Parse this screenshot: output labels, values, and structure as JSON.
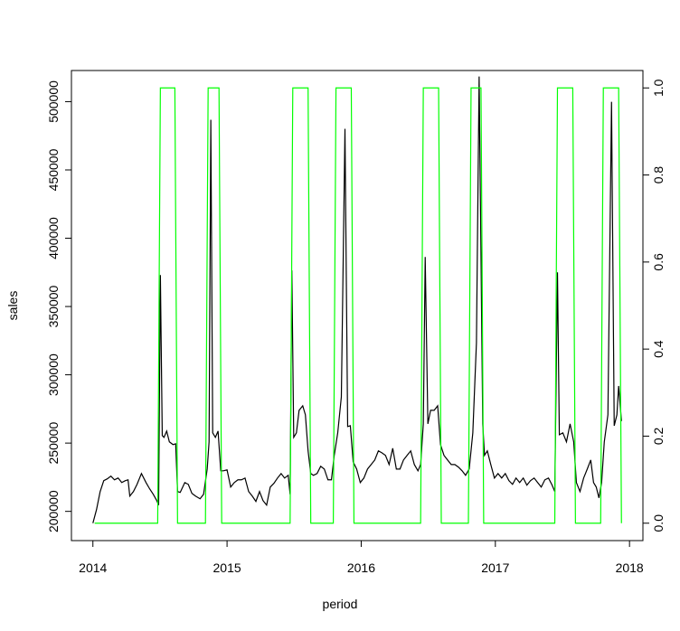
{
  "chart_data": {
    "type": "line",
    "xlabel": "period",
    "ylabel": "sales",
    "xlim": [
      2013.84,
      2018.1
    ],
    "xticks": [
      2014,
      2015,
      2016,
      2017,
      2018
    ],
    "ylim": [
      178600,
      522800
    ],
    "yticks": [
      200000,
      250000,
      300000,
      350000,
      400000,
      450000,
      500000
    ],
    "y2lim": [
      -0.04,
      1.04
    ],
    "y2ticks": [
      {
        "value": 0,
        "label": "0.0"
      },
      0.2,
      0.4,
      0.6,
      0.8,
      {
        "value": 1,
        "label": "1.0"
      }
    ],
    "series": [
      {
        "color": "#000000",
        "axis": "y",
        "x": [
          2014.0,
          2014.027,
          2014.054,
          2014.081,
          2014.107,
          2014.134,
          2014.161,
          2014.188,
          2014.215,
          2014.242,
          2014.262,
          2014.275,
          2014.302,
          2014.329,
          2014.362,
          2014.396,
          2014.423,
          2014.45,
          2014.476,
          2014.49,
          2014.503,
          2014.517,
          2014.53,
          2014.55,
          2014.57,
          2014.597,
          2014.617,
          2014.631,
          2014.651,
          2014.685,
          2014.711,
          2014.738,
          2014.765,
          2014.799,
          2014.825,
          2014.852,
          2014.866,
          2014.879,
          2014.893,
          2014.913,
          2014.933,
          2014.953,
          2014.973,
          2015.0,
          2015.027,
          2015.054,
          2015.081,
          2015.107,
          2015.134,
          2015.161,
          2015.188,
          2015.215,
          2015.242,
          2015.268,
          2015.295,
          2015.322,
          2015.349,
          2015.376,
          2015.403,
          2015.429,
          2015.456,
          2015.47,
          2015.483,
          2015.497,
          2015.517,
          2015.537,
          2015.564,
          2015.584,
          2015.604,
          2015.624,
          2015.644,
          2015.671,
          2015.698,
          2015.725,
          2015.752,
          2015.778,
          2015.799,
          2015.825,
          2015.852,
          2015.879,
          2015.899,
          2015.919,
          2015.94,
          2015.966,
          2015.993,
          2016.02,
          2016.047,
          2016.074,
          2016.101,
          2016.128,
          2016.154,
          2016.181,
          2016.208,
          2016.235,
          2016.262,
          2016.289,
          2016.315,
          2016.342,
          2016.369,
          2016.396,
          2016.423,
          2016.443,
          2016.463,
          2016.477,
          2016.497,
          2016.517,
          2016.544,
          2016.57,
          2016.591,
          2016.617,
          2016.644,
          2016.671,
          2016.698,
          2016.725,
          2016.752,
          2016.778,
          2016.805,
          2016.832,
          2016.859,
          2016.879,
          2016.906,
          2016.919,
          2016.94,
          2016.966,
          2016.993,
          2017.02,
          2017.047,
          2017.074,
          2017.101,
          2017.128,
          2017.154,
          2017.181,
          2017.208,
          2017.235,
          2017.262,
          2017.289,
          2017.315,
          2017.342,
          2017.369,
          2017.396,
          2017.423,
          2017.443,
          2017.463,
          2017.477,
          2017.503,
          2017.53,
          2017.557,
          2017.584,
          2017.604,
          2017.631,
          2017.658,
          2017.685,
          2017.711,
          2017.732,
          2017.752,
          2017.772,
          2017.792,
          2017.812,
          2017.839,
          2017.866,
          2017.886,
          2017.906,
          2017.919,
          2017.94
        ],
        "values": [
          191400,
          201300,
          214500,
          222500,
          223800,
          225800,
          223100,
          224400,
          221100,
          222500,
          223100,
          211200,
          214500,
          219800,
          227700,
          221100,
          216500,
          212500,
          207900,
          204600,
          373000,
          255500,
          254200,
          258800,
          250900,
          248900,
          249500,
          214500,
          213900,
          221100,
          219800,
          213200,
          211200,
          209200,
          212500,
          231000,
          250900,
          486700,
          257500,
          254200,
          258800,
          229700,
          229700,
          230400,
          217800,
          221100,
          223100,
          223100,
          224400,
          214500,
          211200,
          207300,
          214500,
          207900,
          204600,
          217800,
          220500,
          224400,
          227700,
          224400,
          226400,
          212500,
          376400,
          254200,
          257500,
          274000,
          277300,
          270700,
          244300,
          227700,
          226400,
          227700,
          233000,
          231000,
          223100,
          223100,
          241000,
          257500,
          283900,
          480100,
          262100,
          262700,
          236300,
          231000,
          221100,
          224400,
          231000,
          234300,
          237600,
          244300,
          242900,
          241000,
          234300,
          246200,
          231000,
          231000,
          237600,
          241000,
          244300,
          234300,
          229700,
          234300,
          264100,
          386300,
          264100,
          274000,
          274000,
          277300,
          248900,
          241000,
          237600,
          234300,
          234300,
          232400,
          229700,
          226400,
          231000,
          257500,
          323500,
          518400,
          264100,
          241000,
          244300,
          234300,
          224400,
          227700,
          224400,
          227700,
          222500,
          219800,
          224400,
          221100,
          224400,
          219200,
          222500,
          224400,
          221100,
          217800,
          223100,
          224400,
          219200,
          214500,
          375000,
          256100,
          257500,
          250900,
          264100,
          250900,
          221100,
          214500,
          224400,
          231000,
          237600,
          221100,
          217800,
          209900,
          221100,
          250900,
          270700,
          499900,
          262700,
          270700,
          291800,
          266100
        ]
      },
      {
        "color": "#00ff00",
        "axis": "y2",
        "x": [
          2014.013,
          2014.483,
          2014.503,
          2014.611,
          2014.631,
          2014.839,
          2014.859,
          2014.94,
          2014.96,
          2015.47,
          2015.49,
          2015.604,
          2015.624,
          2015.792,
          2015.812,
          2015.926,
          2015.946,
          2016.443,
          2016.463,
          2016.577,
          2016.597,
          2016.799,
          2016.819,
          2016.893,
          2016.913,
          2017.443,
          2017.463,
          2017.577,
          2017.597,
          2017.785,
          2017.805,
          2017.919,
          2017.94
        ],
        "values": [
          0,
          0,
          1,
          1,
          0,
          0,
          1,
          1,
          0,
          0,
          1,
          1,
          0,
          0,
          1,
          1,
          0,
          0,
          1,
          1,
          0,
          0,
          1,
          1,
          0,
          0,
          1,
          1,
          0,
          0,
          1,
          1,
          0
        ]
      }
    ]
  }
}
